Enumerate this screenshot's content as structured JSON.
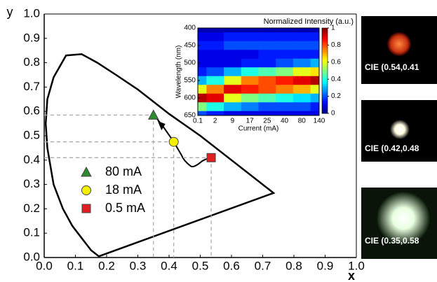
{
  "chart_data": [
    {
      "type": "scatter",
      "xlabel": "x",
      "ylabel": "y",
      "xlim": [
        0,
        1
      ],
      "ylim": [
        0,
        1
      ],
      "xticks": [
        {
          "value": 0,
          "label": "0.0"
        },
        0.1,
        0.2,
        0.3,
        0.4,
        0.5,
        0.6,
        0.7,
        0.8,
        0.9,
        {
          "value": 1,
          "label": "1.0"
        }
      ],
      "yticks": [
        {
          "value": 0,
          "label": "0.0"
        },
        0.1,
        0.2,
        0.3,
        0.4,
        0.5,
        0.6,
        0.7,
        0.8,
        0.9,
        {
          "value": 1,
          "label": "1.0"
        }
      ],
      "series": [
        {
          "name": "80 mA",
          "color": "#2e8b2e",
          "marker": "triangle",
          "x": [
            0.35
          ],
          "y": [
            0.585
          ]
        },
        {
          "name": "18 mA",
          "color": "#f5f000",
          "marker": "circle",
          "x": [
            0.415
          ],
          "y": [
            0.475
          ]
        },
        {
          "name": "0.5 mA",
          "color": "#e02020",
          "marker": "square",
          "x": [
            0.535
          ],
          "y": [
            0.41
          ]
        }
      ]
    },
    {
      "type": "heatmap",
      "title": "Normalized Intensity (a.u.)",
      "xlabel": "Current (mA)",
      "ylabel": "Wavelength (nm)",
      "x": [
        "0.1",
        "2",
        "9",
        "17",
        "25",
        "40",
        "80",
        "140"
      ],
      "y": [
        400,
        425,
        450,
        475,
        500,
        525,
        550,
        575,
        600,
        625,
        650
      ],
      "ylim": [
        400,
        650
      ],
      "y_inverted": true,
      "yticks": [
        400,
        450,
        500,
        550,
        600,
        650
      ],
      "clim": [
        0,
        1
      ],
      "cticks": [
        0,
        0.2,
        0.4,
        0.6,
        0.8,
        1
      ],
      "colormap": "jet",
      "z": [
        [
          0.05,
          0.05,
          0.05,
          0.05,
          0.05,
          0.05,
          0.05,
          0.05
        ],
        [
          0.1,
          0.1,
          0.15,
          0.15,
          0.15,
          0.15,
          0.15,
          0.15
        ],
        [
          0.15,
          0.15,
          0.2,
          0.2,
          0.2,
          0.2,
          0.2,
          0.2
        ],
        [
          0.1,
          0.1,
          0.1,
          0.1,
          0.15,
          0.15,
          0.15,
          0.15
        ],
        [
          0.1,
          0.1,
          0.1,
          0.15,
          0.15,
          0.2,
          0.25,
          0.3
        ],
        [
          0.15,
          0.2,
          0.3,
          0.4,
          0.45,
          0.5,
          0.6,
          0.65
        ],
        [
          0.3,
          0.4,
          0.6,
          0.75,
          0.8,
          0.85,
          0.9,
          0.95
        ],
        [
          0.6,
          0.75,
          0.9,
          0.85,
          0.8,
          0.75,
          0.7,
          0.6
        ],
        [
          0.95,
          0.9,
          0.6,
          0.5,
          0.45,
          0.4,
          0.35,
          0.3
        ],
        [
          0.5,
          0.4,
          0.3,
          0.25,
          0.2,
          0.2,
          0.2,
          0.15
        ],
        [
          0.2,
          0.15,
          0.1,
          0.1,
          0.1,
          0.1,
          0.1,
          0.1
        ]
      ]
    }
  ],
  "photos": [
    {
      "label": "CIE (0.54,0.41"
    },
    {
      "label": "CIE (0.42,0.48"
    },
    {
      "label": "CIE (0.35,0.58"
    }
  ]
}
